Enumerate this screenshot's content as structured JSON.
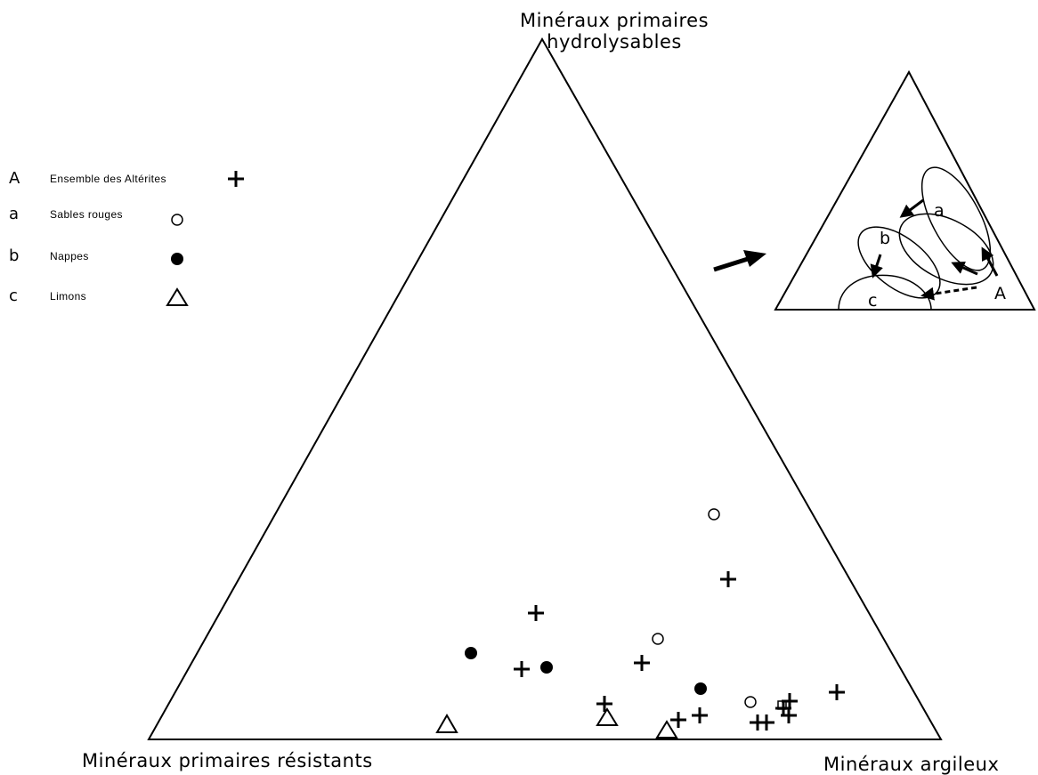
{
  "vertices": {
    "top_line1": "Minéraux primaires",
    "top_line2": "hydrolysables",
    "left": "Minéraux primaires résistants",
    "right": "Minéraux argileux"
  },
  "legend": [
    {
      "letter": "A",
      "text": "Ensemble des Altérites",
      "symbol": "plus"
    },
    {
      "letter": "a",
      "text": "Sables rouges",
      "symbol": "open-circle"
    },
    {
      "letter": "b",
      "text": "Nappes",
      "symbol": "filled-circle"
    },
    {
      "letter": "c",
      "text": "Limons",
      "symbol": "open-triangle"
    }
  ],
  "inset": {
    "labels": [
      "a",
      "b",
      "c",
      "A"
    ]
  }
}
